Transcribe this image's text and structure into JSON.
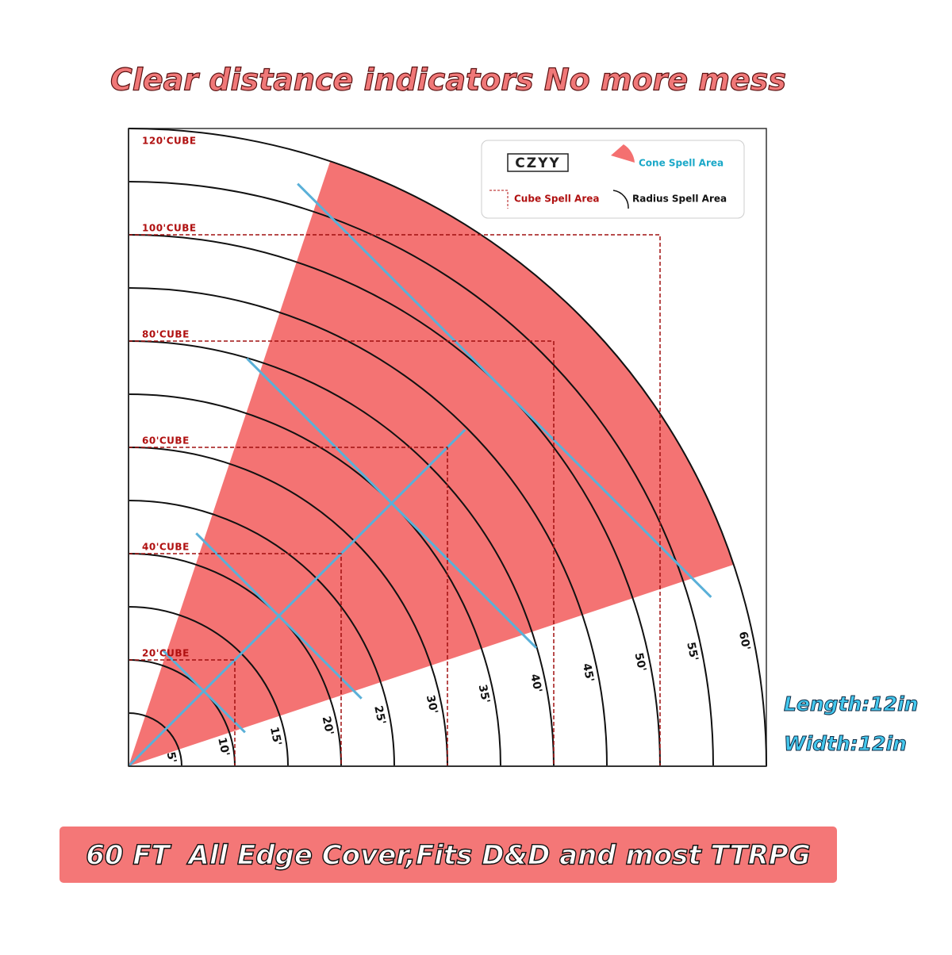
{
  "headline": "Clear distance indicators No more mess",
  "legend": {
    "brand": "CZYY",
    "cone": "Cone Spell Area",
    "cube": "Cube Spell Area",
    "radius": "Radius Spell Area"
  },
  "cube_labels": [
    "20'CUBE",
    "40'CUBE",
    "60'CUBE",
    "80'CUBE",
    "100'CUBE",
    "120'CUBE"
  ],
  "radius_labels": [
    "5'",
    "10'",
    "15'",
    "20'",
    "25'",
    "30'",
    "35'",
    "40'",
    "45'",
    "50'",
    "55'",
    "60'"
  ],
  "specs": [
    "Length:12in",
    "Width:12in"
  ],
  "banner": "60 FT  All Edge Cover,Fits D&D and most TTRPG"
}
